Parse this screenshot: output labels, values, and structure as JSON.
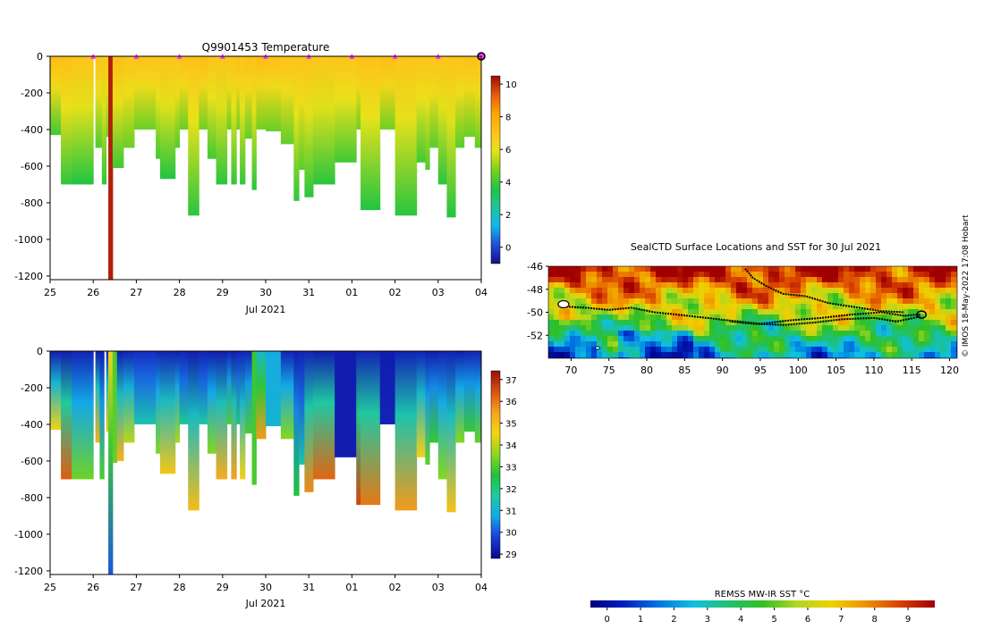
{
  "colors": {
    "temperature_scale": [
      "#1a0a8c",
      "#1e4fd8",
      "#13b5ea",
      "#1fc49a",
      "#21c442",
      "#7dd21e",
      "#e9e21a",
      "#ffc21a",
      "#ffa500",
      "#e85a0f",
      "#9e0a0a"
    ],
    "salinity_scale": [
      "#080890",
      "#1b3bd8",
      "#14a8e8",
      "#1fc9a0",
      "#22c23c",
      "#8ed81d",
      "#f5d316",
      "#f7a41b",
      "#d9510f",
      "#9a0d0d"
    ],
    "sst_scale": [
      "#00007e",
      "#0020c0",
      "#0078e0",
      "#10c0e0",
      "#20c070",
      "#30c020",
      "#b0d820",
      "#f0d000",
      "#f09000",
      "#d84000",
      "#a00000"
    ],
    "track": "#000000",
    "markers": "#ff33ff"
  },
  "chart_data": [
    {
      "type": "heatmap",
      "id": "temperature_section",
      "title": "Q9901453  Temperature",
      "xlabel": "Jul 2021",
      "ylabel": "",
      "x_ticks": [
        "25",
        "26",
        "27",
        "28",
        "29",
        "30",
        "31",
        "01",
        "02",
        "03",
        "04"
      ],
      "y_ticks": [
        0,
        -200,
        -400,
        -600,
        -800,
        -1000,
        -1200
      ],
      "ylim": [
        -1220,
        0
      ],
      "colorbar": {
        "ticks": [
          0,
          2,
          4,
          6,
          8,
          10
        ],
        "range": [
          -1,
          10.5
        ],
        "label": ""
      },
      "surface_markers": [
        26,
        27,
        28,
        29,
        30,
        31,
        32,
        33,
        34
      ],
      "end_marker": 35.0,
      "profiles": [
        {
          "x": 25.0,
          "w": 0.25,
          "depth": 430,
          "surface": 7.3,
          "deep": 4.0
        },
        {
          "x": 25.25,
          "w": 0.25,
          "depth": 700,
          "surface": 7.2,
          "deep": 3.8
        },
        {
          "x": 25.5,
          "w": 0.5,
          "depth": 700,
          "surface": 7.0,
          "deep": 3.6
        },
        {
          "x": 26.05,
          "w": 0.15,
          "depth": 500,
          "surface": 7.0,
          "deep": 4.2
        },
        {
          "x": 26.2,
          "w": 0.1,
          "depth": 700,
          "surface": 6.8,
          "deep": 3.8
        },
        {
          "x": 26.3,
          "w": 0.05,
          "depth": 440,
          "surface": 7.0,
          "deep": 4.5
        },
        {
          "x": 26.35,
          "w": 0.1,
          "depth": 1220,
          "surface": 10.2,
          "deep": 10.2
        },
        {
          "x": 26.45,
          "w": 0.25,
          "depth": 610,
          "surface": 7.2,
          "deep": 4.0
        },
        {
          "x": 26.7,
          "w": 0.25,
          "depth": 500,
          "surface": 7.0,
          "deep": 4.5
        },
        {
          "x": 26.95,
          "w": 0.5,
          "depth": 400,
          "surface": 7.1,
          "deep": 4.5
        },
        {
          "x": 27.45,
          "w": 0.1,
          "depth": 560,
          "surface": 7.0,
          "deep": 4.0
        },
        {
          "x": 27.55,
          "w": 0.35,
          "depth": 670,
          "surface": 7.0,
          "deep": 3.6
        },
        {
          "x": 27.9,
          "w": 0.1,
          "depth": 500,
          "surface": 7.0,
          "deep": 4.2
        },
        {
          "x": 28.0,
          "w": 0.2,
          "depth": 400,
          "surface": 7.2,
          "deep": 4.5
        },
        {
          "x": 28.2,
          "w": 0.25,
          "depth": 870,
          "surface": 7.1,
          "deep": 3.7
        },
        {
          "x": 28.45,
          "w": 0.2,
          "depth": 400,
          "surface": 7.3,
          "deep": 4.6
        },
        {
          "x": 28.65,
          "w": 0.2,
          "depth": 560,
          "surface": 7.0,
          "deep": 4.0
        },
        {
          "x": 28.85,
          "w": 0.25,
          "depth": 700,
          "surface": 6.9,
          "deep": 3.7
        },
        {
          "x": 29.1,
          "w": 0.1,
          "depth": 400,
          "surface": 7.0,
          "deep": 4.5
        },
        {
          "x": 29.2,
          "w": 0.12,
          "depth": 700,
          "surface": 7.0,
          "deep": 3.8
        },
        {
          "x": 29.32,
          "w": 0.08,
          "depth": 400,
          "surface": 7.2,
          "deep": 4.6
        },
        {
          "x": 29.4,
          "w": 0.12,
          "depth": 700,
          "surface": 7.0,
          "deep": 3.8
        },
        {
          "x": 29.52,
          "w": 0.16,
          "depth": 450,
          "surface": 7.2,
          "deep": 4.4
        },
        {
          "x": 29.68,
          "w": 0.1,
          "depth": 730,
          "surface": 7.0,
          "deep": 3.7
        },
        {
          "x": 29.78,
          "w": 0.22,
          "depth": 400,
          "surface": 7.3,
          "deep": 4.6
        },
        {
          "x": 30.0,
          "w": 0.35,
          "depth": 410,
          "surface": 7.2,
          "deep": 4.5
        },
        {
          "x": 30.35,
          "w": 0.3,
          "depth": 480,
          "surface": 7.1,
          "deep": 4.4
        },
        {
          "x": 30.65,
          "w": 0.12,
          "depth": 790,
          "surface": 7.0,
          "deep": 3.8
        },
        {
          "x": 30.77,
          "w": 0.13,
          "depth": 620,
          "surface": 7.1,
          "deep": 4.3
        },
        {
          "x": 30.9,
          "w": 0.2,
          "depth": 770,
          "surface": 7.0,
          "deep": 3.7
        },
        {
          "x": 31.1,
          "w": 0.5,
          "depth": 700,
          "surface": 6.9,
          "deep": 3.7
        },
        {
          "x": 31.6,
          "w": 0.5,
          "depth": 580,
          "surface": 7.0,
          "deep": 4.0
        },
        {
          "x": 32.1,
          "w": 0.1,
          "depth": 400,
          "surface": 7.2,
          "deep": 4.6
        },
        {
          "x": 32.2,
          "w": 0.45,
          "depth": 840,
          "surface": 7.1,
          "deep": 3.6
        },
        {
          "x": 32.65,
          "w": 0.35,
          "depth": 400,
          "surface": 7.3,
          "deep": 4.6
        },
        {
          "x": 33.0,
          "w": 0.5,
          "depth": 870,
          "surface": 7.0,
          "deep": 3.7
        },
        {
          "x": 33.5,
          "w": 0.2,
          "depth": 580,
          "surface": 7.0,
          "deep": 4.0
        },
        {
          "x": 33.7,
          "w": 0.1,
          "depth": 620,
          "surface": 7.0,
          "deep": 4.2
        },
        {
          "x": 33.8,
          "w": 0.2,
          "depth": 500,
          "surface": 7.1,
          "deep": 4.3
        },
        {
          "x": 34.0,
          "w": 0.2,
          "depth": 700,
          "surface": 7.0,
          "deep": 3.7
        },
        {
          "x": 34.2,
          "w": 0.2,
          "depth": 880,
          "surface": 7.0,
          "deep": 3.6
        },
        {
          "x": 34.4,
          "w": 0.2,
          "depth": 500,
          "surface": 7.1,
          "deep": 4.3
        },
        {
          "x": 34.6,
          "w": 0.25,
          "depth": 440,
          "surface": 7.2,
          "deep": 4.5
        },
        {
          "x": 34.85,
          "w": 0.15,
          "depth": 500,
          "surface": 7.1,
          "deep": 4.4
        }
      ]
    },
    {
      "type": "heatmap",
      "id": "salinity_section",
      "title": "",
      "xlabel": "Jul 2021",
      "ylabel": "",
      "x_ticks": [
        "25",
        "26",
        "27",
        "28",
        "29",
        "30",
        "31",
        "01",
        "02",
        "03",
        "04"
      ],
      "y_ticks": [
        0,
        -200,
        -400,
        -600,
        -800,
        -1000,
        -1200
      ],
      "ylim": [
        -1220,
        0
      ],
      "colorbar": {
        "ticks": [
          29,
          30,
          31,
          32,
          33,
          34,
          35,
          36,
          37
        ],
        "range": [
          28.8,
          37.4
        ],
        "label": ""
      },
      "profiles": [
        {
          "x": 25.0,
          "w": 0.25,
          "depth": 430,
          "surface": 29.2,
          "deep": 34.5
        },
        {
          "x": 25.25,
          "w": 0.25,
          "depth": 700,
          "surface": 29.2,
          "deep": 36.3
        },
        {
          "x": 25.5,
          "w": 0.5,
          "depth": 700,
          "surface": 29.3,
          "deep": 33.3
        },
        {
          "x": 26.05,
          "w": 0.1,
          "depth": 500,
          "surface": 29.2,
          "deep": 35.3
        },
        {
          "x": 26.15,
          "w": 0.1,
          "depth": 700,
          "surface": 29.2,
          "deep": 33.0
        },
        {
          "x": 26.3,
          "w": 0.05,
          "depth": 440,
          "surface": 29.3,
          "deep": 34.8
        },
        {
          "x": 26.35,
          "w": 0.1,
          "depth": 1220,
          "surface": 34.5,
          "deep": 30.0
        },
        {
          "x": 26.45,
          "w": 0.1,
          "depth": 610,
          "surface": 33.0,
          "deep": 33.2
        },
        {
          "x": 26.55,
          "w": 0.15,
          "depth": 600,
          "surface": 29.2,
          "deep": 35.2
        },
        {
          "x": 26.7,
          "w": 0.25,
          "depth": 500,
          "surface": 29.3,
          "deep": 34.0
        },
        {
          "x": 26.95,
          "w": 0.5,
          "depth": 400,
          "surface": 29.5,
          "deep": 31.5
        },
        {
          "x": 27.45,
          "w": 0.1,
          "depth": 560,
          "surface": 29.3,
          "deep": 33.5
        },
        {
          "x": 27.55,
          "w": 0.35,
          "depth": 670,
          "surface": 29.3,
          "deep": 34.8
        },
        {
          "x": 27.9,
          "w": 0.1,
          "depth": 500,
          "surface": 29.2,
          "deep": 33.8
        },
        {
          "x": 28.0,
          "w": 0.2,
          "depth": 400,
          "surface": 29.3,
          "deep": 31.8
        },
        {
          "x": 28.2,
          "w": 0.25,
          "depth": 870,
          "surface": 29.2,
          "deep": 35.0
        },
        {
          "x": 28.45,
          "w": 0.2,
          "depth": 400,
          "surface": 29.3,
          "deep": 31.6
        },
        {
          "x": 28.65,
          "w": 0.2,
          "depth": 560,
          "surface": 29.2,
          "deep": 33.5
        },
        {
          "x": 28.85,
          "w": 0.25,
          "depth": 700,
          "surface": 29.2,
          "deep": 35.3
        },
        {
          "x": 29.1,
          "w": 0.1,
          "depth": 400,
          "surface": 29.3,
          "deep": 33.0
        },
        {
          "x": 29.2,
          "w": 0.12,
          "depth": 700,
          "surface": 29.2,
          "deep": 35.5
        },
        {
          "x": 29.32,
          "w": 0.08,
          "depth": 400,
          "surface": 29.3,
          "deep": 32.0
        },
        {
          "x": 29.4,
          "w": 0.12,
          "depth": 700,
          "surface": 29.3,
          "deep": 34.5
        },
        {
          "x": 29.52,
          "w": 0.16,
          "depth": 450,
          "surface": 29.3,
          "deep": 33.0
        },
        {
          "x": 29.68,
          "w": 0.1,
          "depth": 730,
          "surface": 32.8,
          "deep": 33.0
        },
        {
          "x": 29.78,
          "w": 0.22,
          "depth": 480,
          "surface": 31.2,
          "deep": 35.6
        },
        {
          "x": 30.0,
          "w": 0.35,
          "depth": 410,
          "surface": 30.8,
          "deep": 31.0
        },
        {
          "x": 30.35,
          "w": 0.3,
          "depth": 480,
          "surface": 29.3,
          "deep": 33.5
        },
        {
          "x": 30.65,
          "w": 0.12,
          "depth": 790,
          "surface": 29.2,
          "deep": 32.6
        },
        {
          "x": 30.77,
          "w": 0.13,
          "depth": 620,
          "surface": 29.3,
          "deep": 31.5
        },
        {
          "x": 30.9,
          "w": 0.2,
          "depth": 770,
          "surface": 29.3,
          "deep": 35.8
        },
        {
          "x": 31.1,
          "w": 0.5,
          "depth": 700,
          "surface": 29.2,
          "deep": 36.2
        },
        {
          "x": 31.6,
          "w": 0.5,
          "depth": 580,
          "surface": 29.2,
          "deep": 29.2
        },
        {
          "x": 32.1,
          "w": 0.1,
          "depth": 840,
          "surface": 29.3,
          "deep": 36.6
        },
        {
          "x": 32.2,
          "w": 0.45,
          "depth": 840,
          "surface": 29.3,
          "deep": 36.0
        },
        {
          "x": 32.65,
          "w": 0.35,
          "depth": 400,
          "surface": 29.2,
          "deep": 29.3
        },
        {
          "x": 33.0,
          "w": 0.5,
          "depth": 870,
          "surface": 29.3,
          "deep": 35.6
        },
        {
          "x": 33.5,
          "w": 0.2,
          "depth": 580,
          "surface": 29.3,
          "deep": 34.6
        },
        {
          "x": 33.7,
          "w": 0.1,
          "depth": 620,
          "surface": 29.2,
          "deep": 33.2
        },
        {
          "x": 33.8,
          "w": 0.2,
          "depth": 500,
          "surface": 29.2,
          "deep": 32.8
        },
        {
          "x": 34.0,
          "w": 0.2,
          "depth": 700,
          "surface": 29.3,
          "deep": 33.5
        },
        {
          "x": 34.2,
          "w": 0.2,
          "depth": 880,
          "surface": 29.3,
          "deep": 34.9
        },
        {
          "x": 34.4,
          "w": 0.2,
          "depth": 500,
          "surface": 29.2,
          "deep": 33.5
        },
        {
          "x": 34.6,
          "w": 0.25,
          "depth": 440,
          "surface": 29.3,
          "deep": 32.8
        },
        {
          "x": 34.85,
          "w": 0.15,
          "depth": 500,
          "surface": 29.3,
          "deep": 33.2
        }
      ]
    },
    {
      "type": "heatmap",
      "id": "sst_map",
      "title": "SealCTD Surface Locations and SST for 30 Jul 2021",
      "xlabel": "",
      "ylabel": "",
      "x_ticks": [
        70,
        75,
        80,
        85,
        90,
        95,
        100,
        105,
        110,
        115,
        120
      ],
      "y_ticks": [
        -46,
        -48,
        -50,
        -52
      ],
      "xlim": [
        67,
        121
      ],
      "ylim": [
        -54,
        -46
      ],
      "colorbar": {
        "ticks": [
          0,
          1,
          2,
          3,
          4,
          5,
          6,
          7,
          8,
          9
        ],
        "range": [
          -0.5,
          9.8
        ],
        "label": "REMSS MW-IR SST °C"
      },
      "track": [
        [
          69,
          -49.5
        ],
        [
          72,
          -49.6
        ],
        [
          75,
          -49.8
        ],
        [
          78,
          -49.6
        ],
        [
          81,
          -50.0
        ],
        [
          84,
          -50.2
        ],
        [
          88,
          -50.5
        ],
        [
          92,
          -50.8
        ],
        [
          95,
          -51.0
        ],
        [
          99,
          -50.7
        ],
        [
          103,
          -50.5
        ],
        [
          107,
          -50.2
        ],
        [
          111,
          -50.0
        ],
        [
          114,
          -50.3
        ],
        [
          116,
          -50.2
        ],
        [
          116,
          -50.4
        ],
        [
          113,
          -50.8
        ],
        [
          110,
          -50.5
        ],
        [
          106,
          -50.6
        ],
        [
          102,
          -50.9
        ],
        [
          98,
          -51.1
        ],
        [
          94,
          -51.0
        ],
        [
          91,
          -50.8
        ]
      ],
      "track_north": [
        [
          93,
          -46.2
        ],
        [
          94,
          -47.0
        ],
        [
          96,
          -47.8
        ],
        [
          98,
          -48.4
        ],
        [
          101,
          -48.6
        ],
        [
          104,
          -49.2
        ],
        [
          108,
          -49.6
        ],
        [
          111,
          -49.9
        ],
        [
          114,
          -50.0
        ]
      ]
    }
  ],
  "credit": "© IMOS 18-May-2022 17:08 Hobart"
}
